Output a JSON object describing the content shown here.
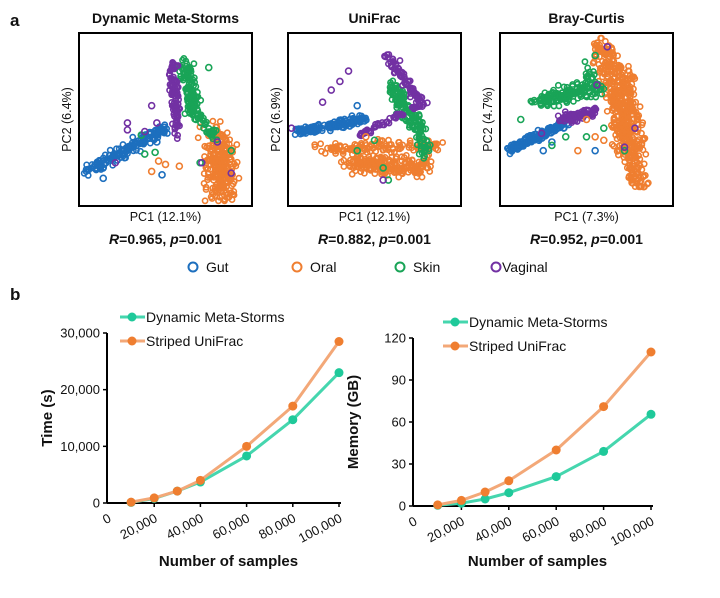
{
  "panel_labels": {
    "a": "a",
    "b": "b"
  },
  "colors": {
    "Gut": "#1d6fbe",
    "Oral": "#ef7e30",
    "Skin": "#19a457",
    "Vaginal": "#7231a3",
    "dms_line": "#45d6ae",
    "dms_marker": "#1fc99a",
    "su_line": "#f3a878",
    "su_marker": "#ef7e30"
  },
  "chart_data": [
    {
      "type": "scatter",
      "title": "Dynamic Meta-Storms",
      "xlabel": "PC1 (12.1%)",
      "ylabel": "PC2 (6.4%)",
      "stat": {
        "R_label": "R",
        "R_value": "=0.965, ",
        "p_label": "p",
        "p_value": "=0.001"
      }
    },
    {
      "type": "scatter",
      "title": "UniFrac",
      "xlabel": "PC1 (12.1%)",
      "ylabel": "PC2 (6.9%)",
      "stat": {
        "R_label": "R",
        "R_value": "=0.882, ",
        "p_label": "p",
        "p_value": "=0.001"
      }
    },
    {
      "type": "scatter",
      "title": "Bray-Curtis",
      "xlabel": "PC1 (7.3%)",
      "ylabel": "PC2 (4.7%)",
      "stat": {
        "R_label": "R",
        "R_value": "=0.952, ",
        "p_label": "p",
        "p_value": "=0.001"
      }
    },
    {
      "type": "line",
      "xlabel": "Number of samples",
      "ylabel": "Time (s)",
      "x": [
        10000,
        20000,
        30000,
        40000,
        60000,
        80000,
        100000
      ],
      "xlim": [
        0,
        100000
      ],
      "ylim": [
        0,
        30000
      ],
      "xticks": [
        "0",
        "20,000",
        "40,000",
        "60,000",
        "80,000",
        "100,000"
      ],
      "yticks": [
        "0",
        "10,000",
        "20,000",
        "30,000"
      ],
      "legend": "top-left",
      "series": [
        {
          "name": "Dynamic Meta-Storms",
          "values": [
            100,
            800,
            2100,
            3700,
            8300,
            14700,
            23000
          ]
        },
        {
          "name": "Striped UniFrac",
          "values": [
            150,
            900,
            2100,
            4000,
            10000,
            17100,
            28500
          ]
        }
      ]
    },
    {
      "type": "line",
      "xlabel": "Number of samples",
      "ylabel": "Memory (GB)",
      "x": [
        10000,
        20000,
        30000,
        40000,
        60000,
        80000,
        100000
      ],
      "xlim": [
        0,
        100000
      ],
      "ylim": [
        0,
        120
      ],
      "xticks": [
        "0",
        "20,000",
        "40,000",
        "60,000",
        "80,000",
        "100,000"
      ],
      "yticks": [
        "0",
        "30",
        "60",
        "90",
        "120"
      ],
      "legend": "top-left",
      "series": [
        {
          "name": "Dynamic Meta-Storms",
          "values": [
            0.5,
            2,
            5,
            9.5,
            21,
            39,
            65.5
          ]
        },
        {
          "name": "Striped UniFrac",
          "values": [
            0.8,
            4,
            10,
            18,
            40,
            71,
            110
          ]
        }
      ]
    }
  ],
  "legend": [
    "Gut",
    "Oral",
    "Skin",
    "Vaginal"
  ]
}
